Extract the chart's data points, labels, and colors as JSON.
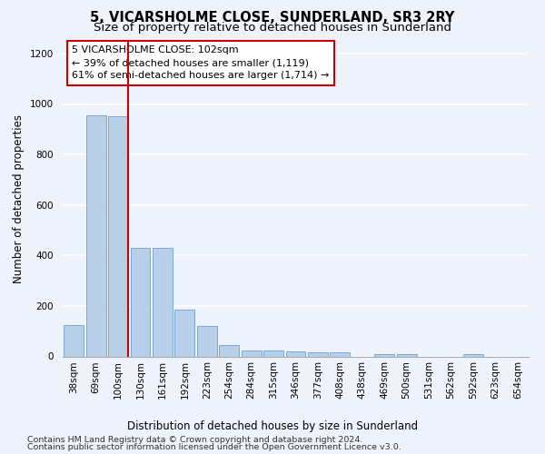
{
  "title": "5, VICARSHOLME CLOSE, SUNDERLAND, SR3 2RY",
  "subtitle": "Size of property relative to detached houses in Sunderland",
  "xlabel": "Distribution of detached houses by size in Sunderland",
  "ylabel": "Number of detached properties",
  "categories": [
    "38sqm",
    "69sqm",
    "100sqm",
    "130sqm",
    "161sqm",
    "192sqm",
    "223sqm",
    "254sqm",
    "284sqm",
    "315sqm",
    "346sqm",
    "377sqm",
    "408sqm",
    "438sqm",
    "469sqm",
    "500sqm",
    "531sqm",
    "562sqm",
    "592sqm",
    "623sqm",
    "654sqm"
  ],
  "values": [
    125,
    955,
    950,
    430,
    430,
    185,
    120,
    45,
    22,
    22,
    20,
    17,
    15,
    0,
    10,
    10,
    0,
    0,
    10,
    0,
    0
  ],
  "bar_color": "#b8cfe8",
  "bar_edge_color": "#6a9fd8",
  "highlight_bar_index": 2,
  "annotation_line1": "5 VICARSHOLME CLOSE: 102sqm",
  "annotation_line2": "← 39% of detached houses are smaller (1,119)",
  "annotation_line3": "61% of semi-detached houses are larger (1,714) →",
  "annotation_box_color": "#ffffff",
  "annotation_box_edge": "#cc0000",
  "vline_color": "#cc0000",
  "ylim": [
    0,
    1250
  ],
  "yticks": [
    0,
    200,
    400,
    600,
    800,
    1000,
    1200
  ],
  "footer_line1": "Contains HM Land Registry data © Crown copyright and database right 2024.",
  "footer_line2": "Contains public sector information licensed under the Open Government Licence v3.0.",
  "background_color": "#eef2fa",
  "grid_color": "#ffffff",
  "title_fontsize": 10.5,
  "subtitle_fontsize": 9.5,
  "axis_label_fontsize": 8.5,
  "tick_fontsize": 7.5,
  "annotation_fontsize": 8,
  "footer_fontsize": 6.8
}
